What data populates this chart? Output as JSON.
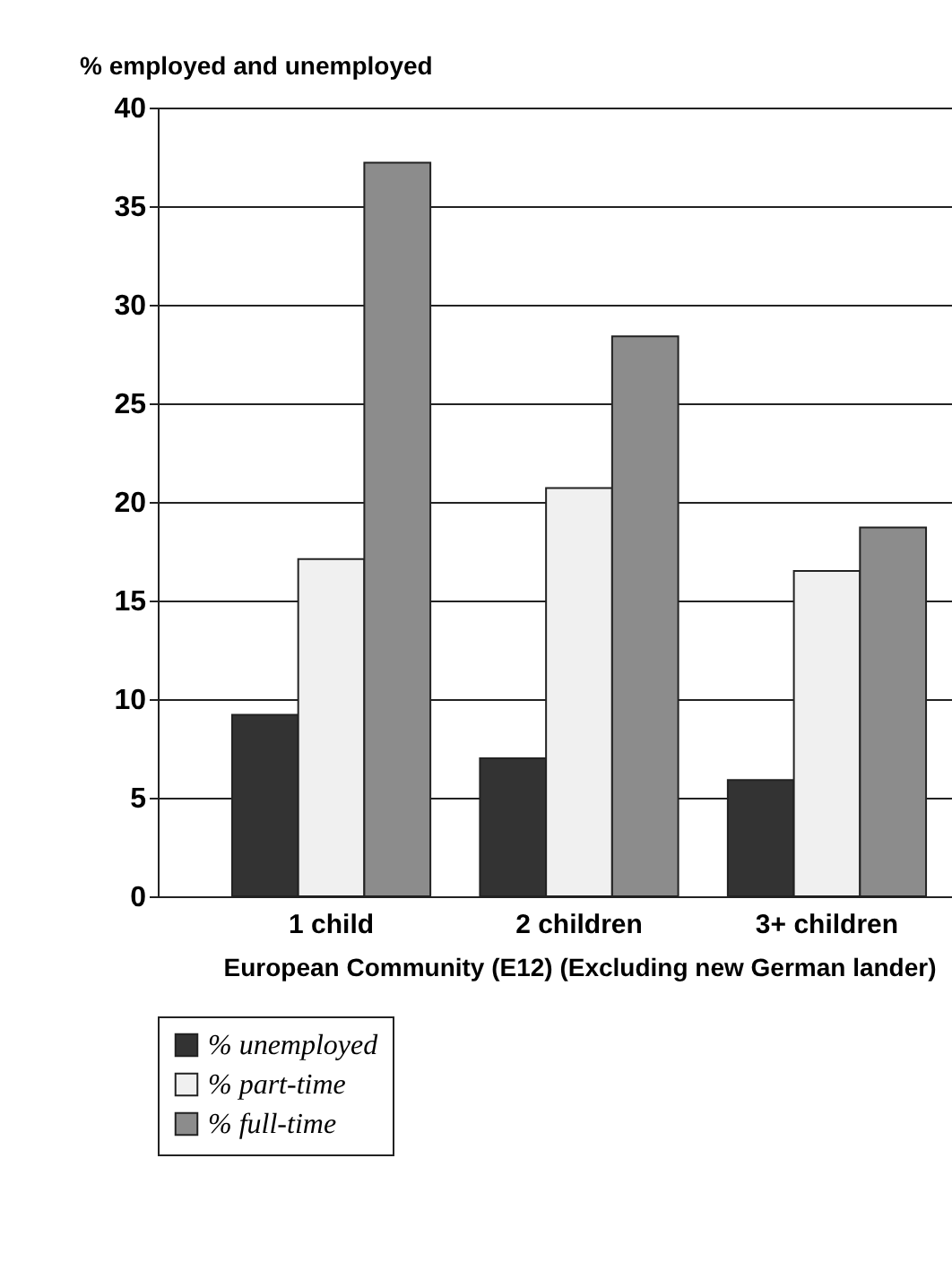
{
  "chart_data": {
    "type": "bar",
    "ylabel": "% employed and unemployed",
    "xlabel": "European Community (E12) (Excluding new German lander)",
    "categories": [
      "1 child",
      "2 children",
      "3+ children"
    ],
    "series": [
      {
        "name": "% unemployed",
        "color": "#333333",
        "values": [
          9.2,
          7.0,
          5.9
        ]
      },
      {
        "name": "% part-time",
        "color": "#f0f0f0",
        "values": [
          17.1,
          20.7,
          16.5
        ]
      },
      {
        "name": "% full-time",
        "color": "#8c8c8c",
        "values": [
          37.2,
          28.4,
          18.7
        ]
      }
    ],
    "ylim": [
      0,
      40
    ],
    "yticks": [
      0,
      5,
      10,
      15,
      20,
      25,
      30,
      35,
      40
    ],
    "grid": "y",
    "legend": "bottom"
  }
}
